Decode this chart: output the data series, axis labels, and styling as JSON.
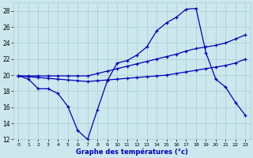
{
  "x": [
    0,
    1,
    2,
    3,
    4,
    5,
    6,
    7,
    8,
    9,
    10,
    11,
    12,
    13,
    14,
    15,
    16,
    17,
    18,
    19,
    20,
    21,
    22,
    23
  ],
  "line_jagged": [
    19.9,
    19.5,
    18.3,
    18.3,
    17.7,
    16.1,
    13.1,
    12.0,
    15.7,
    19.3,
    21.5,
    21.8,
    22.5,
    23.5,
    25.5,
    26.5,
    27.2,
    28.2,
    28.3,
    22.8,
    19.5,
    18.5,
    16.6,
    15.0
  ],
  "line_upper": [
    19.9,
    19.9,
    19.9,
    19.9,
    19.9,
    19.9,
    19.9,
    19.9,
    20.2,
    20.5,
    20.8,
    21.1,
    21.4,
    21.7,
    22.0,
    22.3,
    22.6,
    23.0,
    23.3,
    23.5,
    23.7,
    24.0,
    24.5,
    25.0
  ],
  "line_lower": [
    19.9,
    19.8,
    19.7,
    19.6,
    19.5,
    19.4,
    19.3,
    19.2,
    19.3,
    19.4,
    19.5,
    19.6,
    19.7,
    19.8,
    19.9,
    20.0,
    20.2,
    20.4,
    20.6,
    20.8,
    21.0,
    21.2,
    21.5,
    22.0
  ],
  "line_color": "#0000bb",
  "bg_color": "#cce8ee",
  "grid_color": "#aacccc",
  "xlabel": "Graphe des températures (°c)",
  "ylim": [
    12,
    29
  ],
  "xlim": [
    -0.5,
    23.5
  ],
  "yticks": [
    12,
    14,
    16,
    18,
    20,
    22,
    24,
    26,
    28
  ],
  "xticks": [
    0,
    1,
    2,
    3,
    4,
    5,
    6,
    7,
    8,
    9,
    10,
    11,
    12,
    13,
    14,
    15,
    16,
    17,
    18,
    19,
    20,
    21,
    22,
    23
  ]
}
